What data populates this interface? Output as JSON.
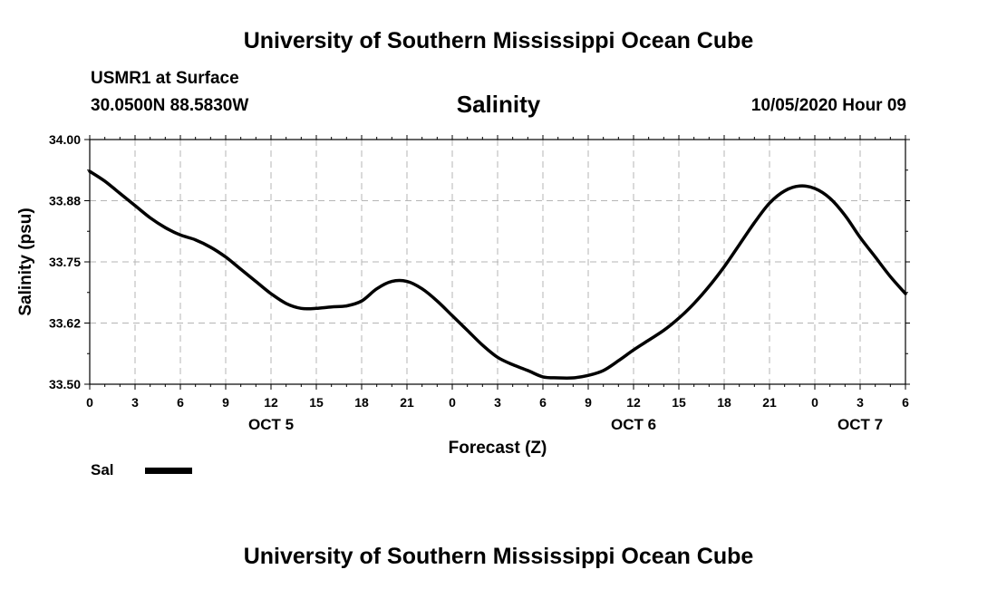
{
  "header": {
    "title_top": "University of Southern Mississippi Ocean Cube",
    "station": "USMR1 at Surface",
    "coords": "30.0500N 88.5830W",
    "datetime": "10/05/2020 Hour 09",
    "title_bottom": "University of Southern Mississippi Ocean Cube"
  },
  "legend": {
    "label": "Sal",
    "color": "#000000"
  },
  "chart_data": {
    "type": "line",
    "title": "Salinity",
    "xlabel": "Forecast (Z)",
    "ylabel": "Salinity (psu)",
    "ylim": [
      33.5,
      34.0
    ],
    "yticks": [
      "33.50",
      "33.62",
      "33.75",
      "33.88",
      "34.00"
    ],
    "xlim": [
      0,
      54
    ],
    "xticks": [
      {
        "x": 0,
        "label": "0"
      },
      {
        "x": 3,
        "label": "3"
      },
      {
        "x": 6,
        "label": "6"
      },
      {
        "x": 9,
        "label": "9"
      },
      {
        "x": 12,
        "label": "12"
      },
      {
        "x": 15,
        "label": "15"
      },
      {
        "x": 18,
        "label": "18"
      },
      {
        "x": 21,
        "label": "21"
      },
      {
        "x": 24,
        "label": "0"
      },
      {
        "x": 27,
        "label": "3"
      },
      {
        "x": 30,
        "label": "6"
      },
      {
        "x": 33,
        "label": "9"
      },
      {
        "x": 36,
        "label": "12"
      },
      {
        "x": 39,
        "label": "15"
      },
      {
        "x": 42,
        "label": "18"
      },
      {
        "x": 45,
        "label": "21"
      },
      {
        "x": 48,
        "label": "0"
      },
      {
        "x": 51,
        "label": "3"
      },
      {
        "x": 54,
        "label": "6"
      }
    ],
    "day_labels": [
      {
        "x": 12,
        "label": "OCT 5"
      },
      {
        "x": 36,
        "label": "OCT 6"
      },
      {
        "x": 51,
        "label": "OCT 7"
      }
    ],
    "grid": true,
    "series": [
      {
        "name": "Sal",
        "color": "#000000",
        "x": [
          0,
          1,
          2,
          3,
          4,
          5,
          6,
          7,
          8,
          9,
          10,
          11,
          12,
          13,
          14,
          15,
          16,
          17,
          18,
          19,
          20,
          21,
          22,
          23,
          24,
          25,
          26,
          27,
          28,
          29,
          30,
          31,
          32,
          33,
          34,
          35,
          36,
          37,
          38,
          39,
          40,
          41,
          42,
          43,
          44,
          45,
          46,
          47,
          48,
          49,
          50,
          51,
          52,
          53,
          54
        ],
        "values": [
          33.935,
          33.915,
          33.89,
          33.865,
          33.84,
          33.82,
          33.805,
          33.795,
          33.78,
          33.76,
          33.735,
          33.71,
          33.685,
          33.665,
          33.655,
          33.655,
          33.658,
          33.66,
          33.67,
          33.695,
          33.71,
          33.71,
          33.695,
          33.67,
          33.64,
          33.61,
          33.58,
          33.555,
          33.54,
          33.528,
          33.515,
          33.513,
          33.513,
          33.518,
          33.528,
          33.548,
          33.57,
          33.59,
          33.61,
          33.635,
          33.665,
          33.7,
          33.74,
          33.785,
          33.83,
          33.87,
          33.895,
          33.905,
          33.9,
          33.88,
          33.845,
          33.8,
          33.76,
          33.72,
          33.685
        ]
      }
    ]
  }
}
